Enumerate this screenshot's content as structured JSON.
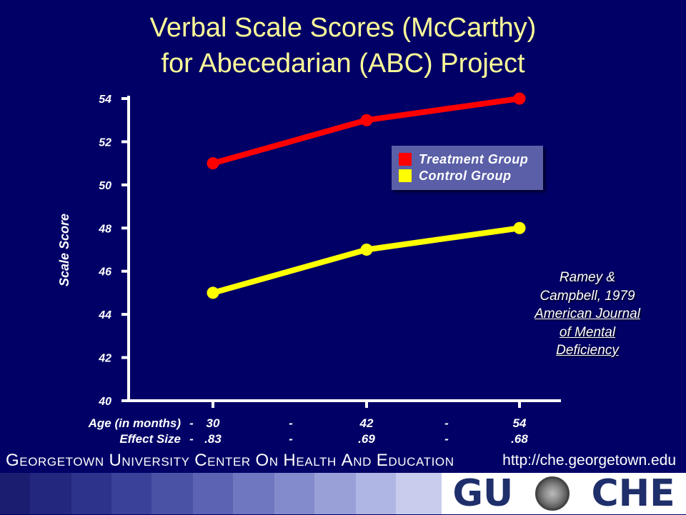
{
  "header": {
    "title_line1": "Verbal Scale Scores (McCarthy)",
    "title_line2": "for Abecedarian (ABC) Project"
  },
  "chart_data": {
    "type": "line",
    "title": "Verbal Scale Scores (McCarthy) for Abecedarian (ABC) Project",
    "ylabel": "Scale Score",
    "xlabel": "Age (in months)",
    "x": [
      30,
      42,
      54
    ],
    "ylim": [
      40,
      54
    ],
    "yticks": [
      40,
      42,
      44,
      46,
      48,
      50,
      52,
      54
    ],
    "series": [
      {
        "name": "Treatment Group",
        "color": "#ff0000",
        "values": [
          51,
          53,
          54
        ]
      },
      {
        "name": "Control Group",
        "color": "#ffff00",
        "values": [
          45,
          47,
          48
        ]
      }
    ],
    "legend_position": "upper-right",
    "grid": false,
    "below_axis_rows": [
      {
        "label": "Age (in months)",
        "cells": [
          "-",
          "30",
          "-",
          "42",
          "-",
          "54"
        ]
      },
      {
        "label": "Effect Size",
        "cells": [
          "-",
          ".83",
          "-",
          ".69",
          "-",
          ".68"
        ]
      }
    ]
  },
  "legend": {
    "items": [
      {
        "label": "Treatment Group",
        "color": "#ff0000"
      },
      {
        "label": "Control Group",
        "color": "#ffff00"
      }
    ]
  },
  "citation": {
    "line1": "Ramey &",
    "line2": "Campbell, 1979",
    "line3": "American Journal",
    "line4": "of Mental",
    "line5": "Deficiency"
  },
  "footer": {
    "org": "Georgetown University Center on Health and Education",
    "url": "http://che.georgetown.edu",
    "logo_left": "GU",
    "logo_right": "CHE",
    "band_colors": [
      "#1a1d70",
      "#23287e",
      "#2d338a",
      "#3a4198",
      "#4a52a6",
      "#5b63b2",
      "#6e77bf",
      "#838bcc",
      "#99a0d8",
      "#b0b6e3",
      "#c8cdee"
    ]
  }
}
